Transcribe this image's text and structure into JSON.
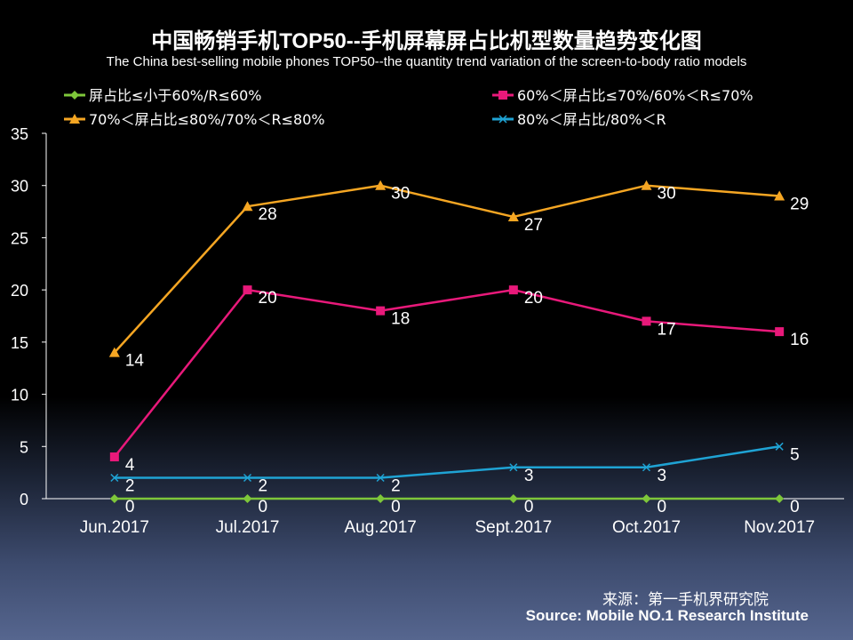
{
  "chart_data": {
    "type": "line",
    "title": "中国畅销手机TOP50--手机屏幕屏占比机型数量趋势变化图",
    "subtitle": "The China best-selling mobile phones TOP50--the quantity trend variation of the screen-to-body ratio models",
    "xlabel": "",
    "ylabel": "",
    "ylim": [
      0,
      35
    ],
    "yticks": [
      "0",
      "5",
      "10",
      "15",
      "20",
      "25",
      "30",
      "35"
    ],
    "grid": false,
    "legend_position": "top",
    "categories": [
      "Jun.2017",
      "Jul.2017",
      "Aug.2017",
      "Sept.2017",
      "Oct.2017",
      "Nov.2017"
    ],
    "series": [
      {
        "name": "屏占比≤小于60%/R≤60%",
        "values": [
          0,
          0,
          0,
          0,
          0,
          0
        ],
        "color": "#7ec73a",
        "marker": "diamond"
      },
      {
        "name": "60%＜屏占比≤70%/60%＜R≤70%",
        "values": [
          4,
          20,
          18,
          20,
          17,
          16
        ],
        "color": "#e8197a",
        "marker": "square"
      },
      {
        "name": "70%＜屏占比≤80%/70%＜R≤80%",
        "values": [
          14,
          28,
          30,
          27,
          30,
          29
        ],
        "color": "#f5a623",
        "marker": "triangle"
      },
      {
        "name": "80%＜屏占比/80%＜R",
        "values": [
          2,
          2,
          2,
          3,
          3,
          5
        ],
        "color": "#1fa3d4",
        "marker": "x"
      }
    ]
  },
  "source": {
    "cn": "来源：第一手机界研究院",
    "en": "Source: Mobile NO.1 Research Institute"
  }
}
